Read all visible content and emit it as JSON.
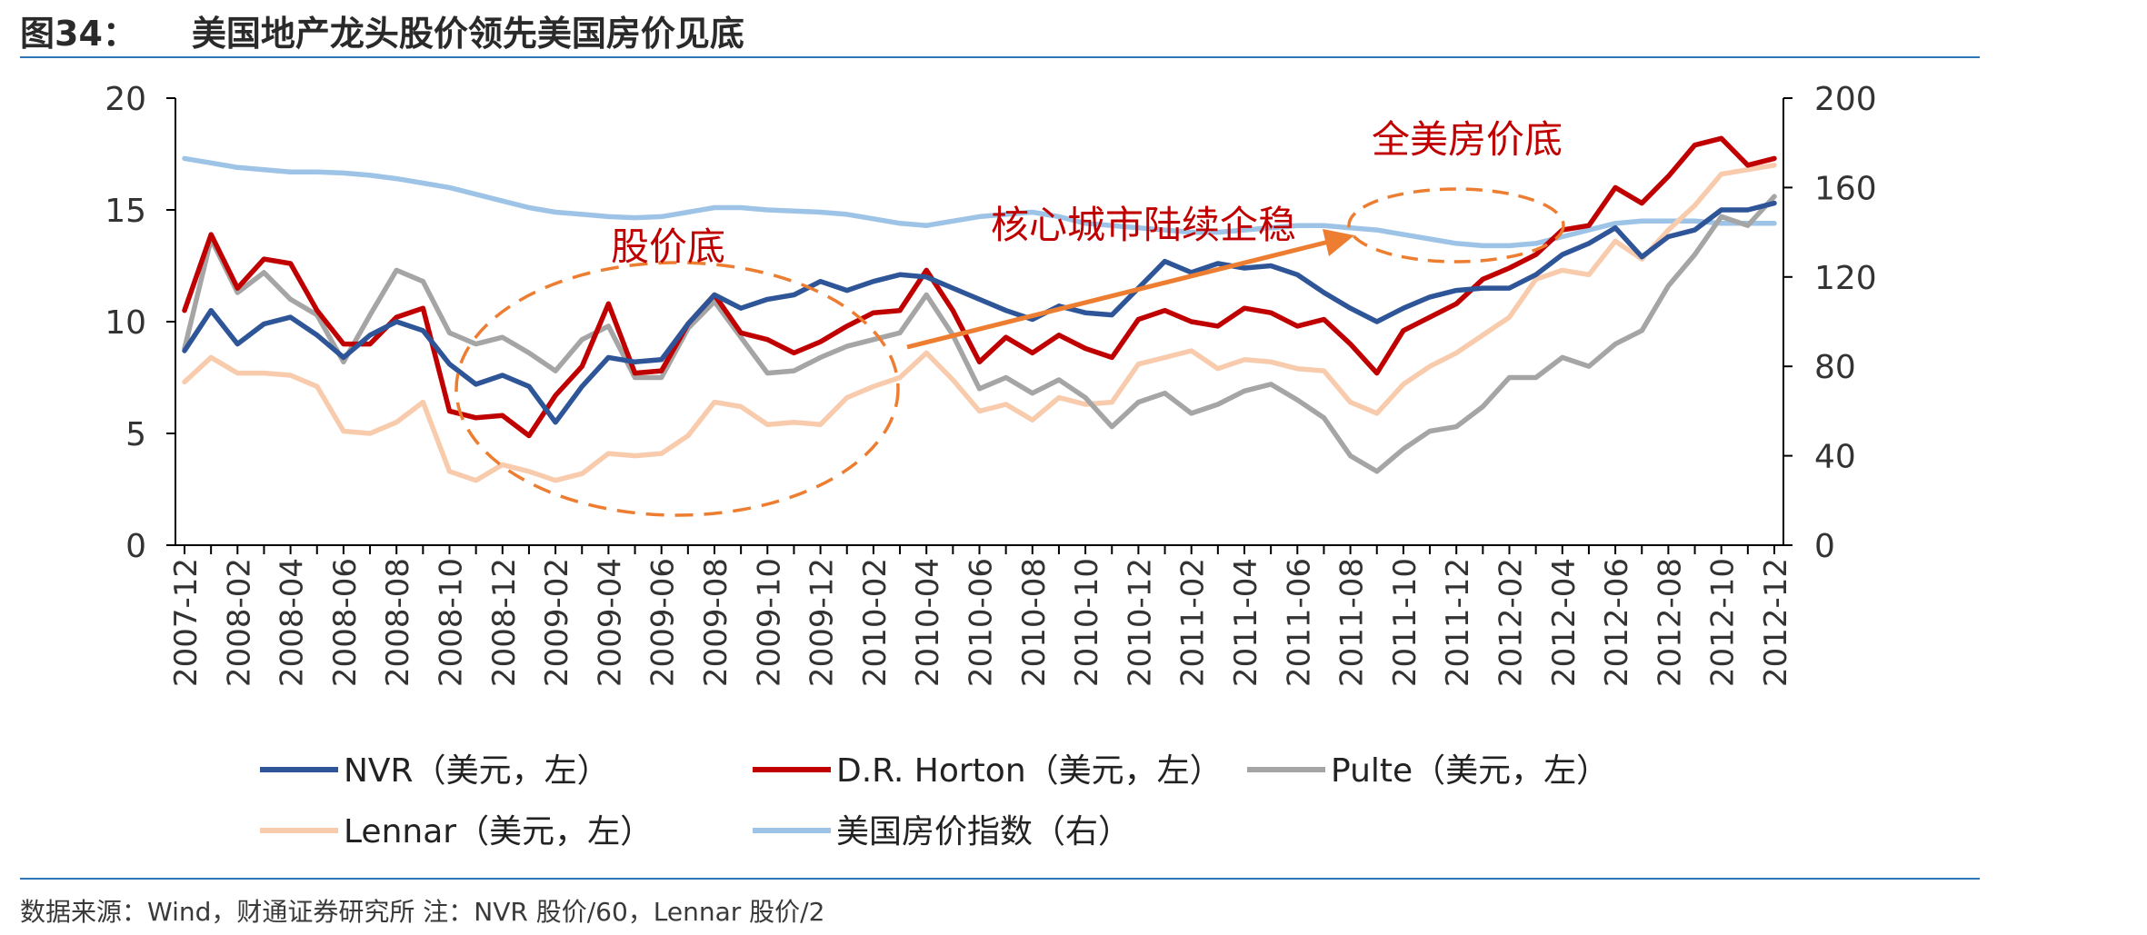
{
  "header": {
    "figure_number": "图34：",
    "title": "美国地产龙头股价领先美国房价见底"
  },
  "source_note": "数据来源：Wind，财通证券研究所 注：NVR 股价/60，Lennar 股价/2",
  "colors": {
    "rule": "#2e75b6",
    "axis": "#000000",
    "annotation": "#ed7d31"
  },
  "chart_data": {
    "type": "line",
    "x": [
      "2007-12",
      "2008-01",
      "2008-02",
      "2008-03",
      "2008-04",
      "2008-05",
      "2008-06",
      "2008-07",
      "2008-08",
      "2008-09",
      "2008-10",
      "2008-11",
      "2008-12",
      "2009-01",
      "2009-02",
      "2009-03",
      "2009-04",
      "2009-05",
      "2009-06",
      "2009-07",
      "2009-08",
      "2009-09",
      "2009-10",
      "2009-11",
      "2009-12",
      "2010-01",
      "2010-02",
      "2010-03",
      "2010-04",
      "2010-05",
      "2010-06",
      "2010-07",
      "2010-08",
      "2010-09",
      "2010-10",
      "2010-11",
      "2010-12",
      "2011-01",
      "2011-02",
      "2011-03",
      "2011-04",
      "2011-05",
      "2011-06",
      "2011-07",
      "2011-08",
      "2011-09",
      "2011-10",
      "2011-11",
      "2011-12",
      "2012-01",
      "2012-02",
      "2012-03",
      "2012-04",
      "2012-05",
      "2012-06",
      "2012-07",
      "2012-08",
      "2012-09",
      "2012-10",
      "2012-11",
      "2012-12"
    ],
    "x_tick_labels": [
      "2007-12",
      "2008-02",
      "2008-04",
      "2008-06",
      "2008-08",
      "2008-10",
      "2008-12",
      "2009-02",
      "2009-04",
      "2009-06",
      "2009-08",
      "2009-10",
      "2009-12",
      "2010-02",
      "2010-04",
      "2010-06",
      "2010-08",
      "2010-10",
      "2010-12",
      "2011-02",
      "2011-04",
      "2011-06",
      "2011-08",
      "2011-10",
      "2011-12",
      "2012-02",
      "2012-04",
      "2012-06",
      "2012-08",
      "2012-10",
      "2012-12"
    ],
    "y_left": {
      "ticks": [
        "0",
        "5",
        "10",
        "15",
        "20"
      ],
      "ylim": [
        0,
        20
      ]
    },
    "y_right": {
      "ticks": [
        "0",
        "40",
        "80",
        "120",
        "160",
        "200"
      ],
      "ylim": [
        0,
        200
      ]
    },
    "grid": false,
    "legend_position": "bottom",
    "series": [
      {
        "name": "NVR（美元，左）",
        "axis": "left",
        "color": "#2e5597",
        "values": [
          8.7,
          10.5,
          9.0,
          9.9,
          10.2,
          9.4,
          8.4,
          9.4,
          10.0,
          9.6,
          8.1,
          7.2,
          7.6,
          7.1,
          5.5,
          7.1,
          8.4,
          8.2,
          8.3,
          9.9,
          11.2,
          10.6,
          11.0,
          11.2,
          11.8,
          11.4,
          11.8,
          12.1,
          12.0,
          11.5,
          11.0,
          10.5,
          10.1,
          10.7,
          10.4,
          10.3,
          11.5,
          12.7,
          12.2,
          12.6,
          12.4,
          12.5,
          12.1,
          11.3,
          10.6,
          10.0,
          10.6,
          11.1,
          11.4,
          11.5,
          11.5,
          12.1,
          13.0,
          13.5,
          14.2,
          12.9,
          13.8,
          14.1,
          15.0,
          15.0,
          15.3
        ]
      },
      {
        "name": "D.R. Horton（美元，左）",
        "axis": "left",
        "color": "#c00000",
        "values": [
          10.5,
          13.9,
          11.5,
          12.8,
          12.6,
          10.5,
          9.0,
          9.0,
          10.2,
          10.6,
          6.0,
          5.7,
          5.8,
          4.9,
          6.7,
          8.0,
          10.8,
          7.7,
          7.8,
          9.9,
          11.2,
          9.5,
          9.2,
          8.6,
          9.1,
          9.8,
          10.4,
          10.5,
          12.3,
          10.5,
          8.2,
          9.3,
          8.6,
          9.4,
          8.8,
          8.4,
          10.1,
          10.5,
          10.0,
          9.8,
          10.6,
          10.4,
          9.8,
          10.1,
          9.0,
          7.7,
          9.6,
          10.2,
          10.8,
          11.9,
          12.4,
          13.0,
          14.1,
          14.3,
          16.0,
          15.3,
          16.5,
          17.9,
          18.2,
          17.0,
          17.3
        ]
      },
      {
        "name": "Pulte（美元，左）",
        "axis": "left",
        "color": "#a5a5a5",
        "values": [
          8.8,
          13.7,
          11.3,
          12.2,
          11.0,
          10.3,
          8.2,
          10.3,
          12.3,
          11.8,
          9.5,
          9.0,
          9.3,
          8.6,
          7.8,
          9.2,
          9.8,
          7.5,
          7.5,
          9.7,
          10.9,
          9.3,
          7.7,
          7.8,
          8.4,
          8.9,
          9.2,
          9.5,
          11.2,
          9.4,
          7.0,
          7.5,
          6.8,
          7.4,
          6.6,
          5.3,
          6.4,
          6.8,
          5.9,
          6.3,
          6.9,
          7.2,
          6.5,
          5.7,
          4.0,
          3.3,
          4.3,
          5.1,
          5.3,
          6.2,
          7.5,
          7.5,
          8.4,
          8.0,
          9.0,
          9.6,
          11.6,
          13.0,
          14.7,
          14.3,
          15.6
        ]
      },
      {
        "name": "Lennar（美元，左）",
        "axis": "left",
        "color": "#f8cbad",
        "values": [
          7.3,
          8.4,
          7.7,
          7.7,
          7.6,
          7.1,
          5.1,
          5.0,
          5.5,
          6.4,
          3.3,
          2.9,
          3.6,
          3.3,
          2.9,
          3.2,
          4.1,
          4.0,
          4.1,
          4.9,
          6.4,
          6.2,
          5.4,
          5.5,
          5.4,
          6.6,
          7.1,
          7.5,
          8.6,
          7.4,
          6.0,
          6.3,
          5.6,
          6.6,
          6.3,
          6.4,
          8.1,
          8.4,
          8.7,
          7.9,
          8.3,
          8.2,
          7.9,
          7.8,
          6.4,
          5.9,
          7.2,
          8.0,
          8.6,
          9.4,
          10.2,
          11.9,
          12.3,
          12.1,
          13.6,
          12.8,
          14.1,
          15.2,
          16.6,
          16.8,
          17.0
        ]
      },
      {
        "name": "美国房价指数（右）",
        "axis": "right",
        "color": "#9dc3e6",
        "values": [
          173,
          171,
          169,
          168,
          167,
          167,
          166.5,
          165.5,
          164,
          162,
          160,
          157,
          154,
          151,
          149,
          148,
          147,
          146.5,
          147,
          149,
          151,
          151,
          150,
          149.5,
          149,
          148,
          146,
          144,
          143,
          145,
          147,
          148,
          149,
          147,
          144,
          143,
          142,
          141,
          140,
          140,
          141,
          142,
          143,
          143,
          142,
          141,
          139,
          137,
          135,
          134,
          134,
          135,
          138,
          141,
          144,
          145,
          145,
          145,
          144,
          144,
          144
        ]
      }
    ],
    "annotations": [
      "股价底",
      "核心城市陆续企稳",
      "全美房价底"
    ]
  }
}
